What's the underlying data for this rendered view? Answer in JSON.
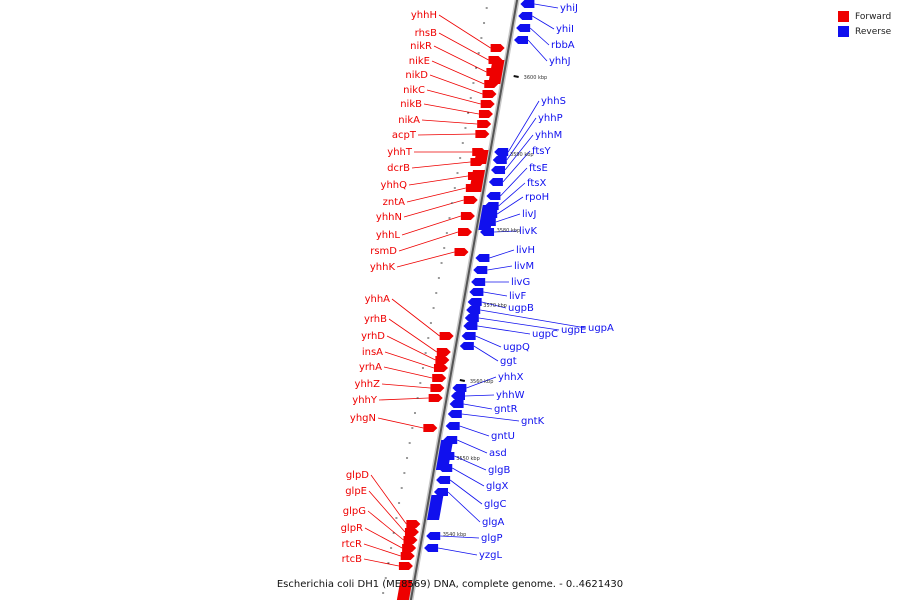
{
  "legend": {
    "forward_label": "Forward",
    "reverse_label": "Reverse",
    "forward_color": "#ee0000",
    "reverse_color": "#1010ee"
  },
  "caption": "Escherichia coli DH1 (ME8569) DNA, complete genome. - 0..4621430",
  "scale_marks": [
    "3600 kbp",
    "3590 kbp",
    "3580 kbp",
    "3570 kbp",
    "3560 kbp",
    "3550 kbp",
    "3540 kbp"
  ],
  "forward_genes": [
    "yhhH",
    "rhsB",
    "nikR",
    "nikE",
    "nikD",
    "nikC",
    "nikB",
    "nikA",
    "acpT",
    "yhhT",
    "dcrB",
    "yhhQ",
    "zntA",
    "yhhN",
    "yhhL",
    "rsmD",
    "yhhK",
    "yhhA",
    "yrhB",
    "yrhD",
    "insA",
    "yrhA",
    "yhhZ",
    "yhhY",
    "yhgN",
    "glpD",
    "glpE",
    "glpG",
    "glpR",
    "rtcR",
    "rtcB"
  ],
  "reverse_genes": [
    "yhiJ",
    "yhiI",
    "rbbA",
    "yhhJ",
    "yhhS",
    "yhhP",
    "yhhM",
    "ftsY",
    "ftsE",
    "ftsX",
    "rpoH",
    "livJ",
    "livK",
    "livH",
    "livM",
    "livG",
    "livF",
    "ugpB",
    "ugpA",
    "ugpE",
    "ugpC",
    "ugpQ",
    "ggt",
    "yhhX",
    "yhhW",
    "gntR",
    "gntK",
    "gntU",
    "asd",
    "glgB",
    "glgX",
    "glgC",
    "glgA",
    "glgP",
    "yzgL"
  ]
}
